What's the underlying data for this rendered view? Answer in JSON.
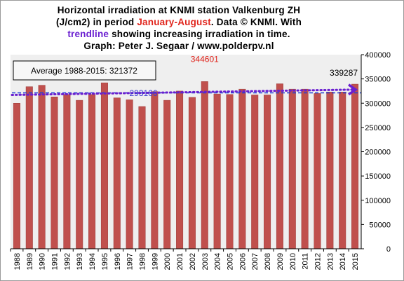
{
  "title": {
    "line1": "Horizontal irradiation  at KNMI  station  Valkenburg  ZH",
    "line2_prefix": "(J/cm2) in period ",
    "line2_period": "January-August",
    "line2_suffix": ". Data © KNMI.  With",
    "line3_trend": "trendline",
    "line3_suffix": " showing  increasing  irradiation  in  time.",
    "line4": "Graph:  Peter  J.  Segaar  /  www.polderpv.nl"
  },
  "colors": {
    "bar": "#c0504d",
    "bar_edge": "#9c3b38",
    "plot_bg": "#efefef",
    "average_line": "#1f3fd6",
    "trend_line": "#6a1fd0",
    "max_label": "#e0241c",
    "min_label": "#3a3ad0",
    "last_label": "#000000"
  },
  "chart_data": {
    "type": "bar",
    "categories": [
      "1988",
      "1989",
      "1990",
      "1991",
      "1992",
      "1993",
      "1994",
      "1995",
      "1996",
      "1997",
      "1998",
      "1999",
      "2000",
      "2001",
      "2002",
      "2003",
      "2004",
      "2005",
      "2006",
      "2007",
      "2008",
      "2009",
      "2010",
      "2011",
      "2012",
      "2013",
      "2014",
      "2015"
    ],
    "values": [
      300000,
      334000,
      337000,
      313000,
      318000,
      306000,
      318000,
      342000,
      311000,
      307000,
      293166,
      324000,
      306000,
      325000,
      312000,
      344601,
      319000,
      318000,
      329000,
      317000,
      317000,
      340000,
      329000,
      329000,
      320000,
      323000,
      323000,
      339287
    ],
    "ylim": [
      0,
      400000
    ],
    "yticks": [
      "0",
      "50000",
      "100000",
      "150000",
      "200000",
      "250000",
      "300000",
      "350000",
      "400000"
    ],
    "y_axis_side": "right",
    "grid": false,
    "average": {
      "label": "Average 1988-2015: 321372",
      "value": 321372
    },
    "trendline": {
      "start": 317000,
      "end": 328000
    },
    "annotations": [
      {
        "text": "344601",
        "category": "2003",
        "kind": "max"
      },
      {
        "text": "293166",
        "category": "1998",
        "kind": "min"
      },
      {
        "text": "339287",
        "category": "2015",
        "kind": "last"
      }
    ]
  }
}
